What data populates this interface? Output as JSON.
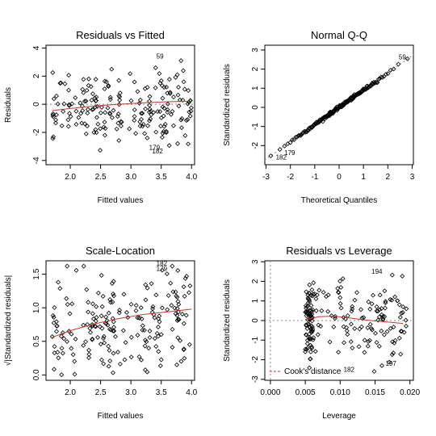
{
  "chart_data": [
    {
      "type": "scatter",
      "title": "Residuals vs Fitted",
      "xlabel": "Fitted values",
      "ylabel": "Residuals",
      "xlim": [
        1.6,
        4.05
      ],
      "ylim": [
        -4.3,
        4.2
      ],
      "xticks": [
        2.0,
        2.5,
        3.0,
        3.5,
        4.0
      ],
      "xtick_labels": [
        "2.0",
        "2.5",
        "3.0",
        "3.5",
        "4.0"
      ],
      "yticks": [
        -4,
        -2,
        0,
        2,
        4
      ],
      "ytick_labels": [
        "-4",
        "-2",
        "0",
        "2",
        "4"
      ],
      "reference_line": {
        "type": "h",
        "value": 0
      },
      "smoother": {
        "x": [
          1.7,
          2.0,
          2.4,
          2.8,
          3.2,
          3.6,
          4.0
        ],
        "y": [
          -0.45,
          -0.3,
          -0.12,
          0.0,
          0.1,
          0.18,
          0.22
        ]
      },
      "annotations": [
        {
          "text": "59",
          "x": 3.42,
          "y": 3.25
        },
        {
          "text": "179",
          "x": 3.3,
          "y": -3.25
        },
        {
          "text": "182",
          "x": 3.35,
          "y": -3.5
        }
      ]
    },
    {
      "type": "scatter",
      "title": "Normal Q-Q",
      "xlabel": "Theoretical Quantiles",
      "ylabel": "Standardized residuals",
      "xlim": [
        -3.05,
        3.05
      ],
      "ylim": [
        -3.0,
        3.25
      ],
      "xticks": [
        -3,
        -2,
        -1,
        0,
        1,
        2,
        3
      ],
      "xtick_labels": [
        "-3",
        "-2",
        "-1",
        "0",
        "1",
        "2",
        "3"
      ],
      "yticks": [
        -2,
        -1,
        0,
        1,
        2,
        3
      ],
      "ytick_labels": [
        "-2",
        "-1",
        "0",
        "1",
        "2",
        "3"
      ],
      "reference_line": {
        "type": "diag",
        "x": [
          -3.05,
          3.05
        ],
        "y": [
          -2.75,
          2.75
        ]
      },
      "annotations": [
        {
          "text": "59",
          "x": 2.45,
          "y": 2.52
        },
        {
          "text": "179",
          "x": -2.25,
          "y": -2.5
        },
        {
          "text": "182",
          "x": -2.6,
          "y": -2.72
        }
      ]
    },
    {
      "type": "scatter",
      "title": "Scale-Location",
      "xlabel": "Fitted values",
      "ylabel": "√|Standardized residuals|",
      "xlim": [
        1.6,
        4.05
      ],
      "ylim": [
        -0.08,
        1.7
      ],
      "xticks": [
        2.0,
        2.5,
        3.0,
        3.5,
        4.0
      ],
      "xtick_labels": [
        "2.0",
        "2.5",
        "3.0",
        "3.5",
        "4.0"
      ],
      "yticks": [
        0.0,
        0.5,
        1.0,
        1.5
      ],
      "ytick_labels": [
        "0.0",
        "0.5",
        "1.0",
        "1.5"
      ],
      "smoother": {
        "x": [
          1.7,
          2.0,
          2.4,
          2.8,
          3.2,
          3.6,
          4.0
        ],
        "y": [
          0.56,
          0.66,
          0.76,
          0.84,
          0.9,
          0.94,
          0.98
        ]
      },
      "annotations": [
        {
          "text": "182",
          "x": 3.42,
          "y": 1.63
        },
        {
          "text": "179",
          "x": 3.42,
          "y": 1.55
        }
      ]
    },
    {
      "type": "scatter",
      "title": "Residuals vs Leverage",
      "xlabel": "Leverage",
      "ylabel": "Standardized residuals",
      "xlim": [
        -0.0008,
        0.0205
      ],
      "ylim": [
        -3.05,
        3.05
      ],
      "xticks": [
        0.0,
        0.005,
        0.01,
        0.015,
        0.02
      ],
      "xtick_labels": [
        "0.000",
        "0.005",
        "0.010",
        "0.015",
        "0.020"
      ],
      "yticks": [
        -3,
        -2,
        -1,
        0,
        1,
        2,
        3
      ],
      "ytick_labels": [
        "-3",
        "-2",
        "-1",
        "0",
        "1",
        "2",
        "3"
      ],
      "reference_line": {
        "type": "h",
        "value": 0
      },
      "smoother": {
        "x": [
          0.005,
          0.007,
          0.009,
          0.011,
          0.013,
          0.015,
          0.017,
          0.019
        ],
        "y": [
          0.05,
          0.2,
          0.22,
          0.15,
          0.05,
          -0.02,
          -0.08,
          -0.15
        ]
      },
      "legend": {
        "position": "bottom-left",
        "label": "Cook's distance"
      },
      "annotations": [
        {
          "text": "194",
          "x": 0.0145,
          "y": 2.4
        },
        {
          "text": "197",
          "x": 0.0165,
          "y": -2.3
        },
        {
          "text": "182",
          "x": 0.0105,
          "y": -2.62
        }
      ]
    }
  ]
}
